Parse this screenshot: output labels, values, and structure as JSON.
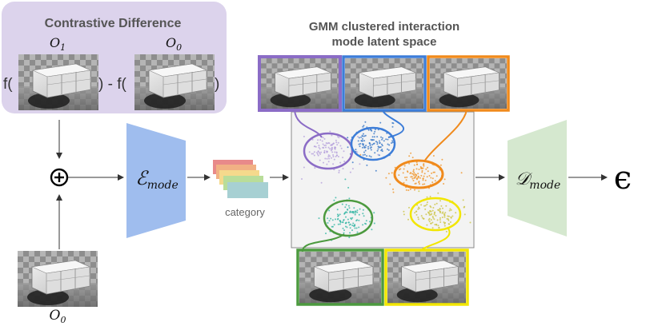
{
  "contrastive": {
    "title": "Contrastive Difference",
    "label_o1": "O",
    "label_o1_sub": "1",
    "label_o0": "O",
    "label_o0_sub": "0",
    "f_open": "f(",
    "f_close_minus": ") - f(",
    "f_close": ")",
    "panel_color": "#dcd3ec"
  },
  "input": {
    "label": "O",
    "label_sub": "0",
    "combine_symbol": "+"
  },
  "encoder": {
    "symbol": "ℰ",
    "subscript": "mode",
    "color": "#9fbdee"
  },
  "category": {
    "label": "category",
    "card_colors": [
      "#e88a8a",
      "#f1b184",
      "#f5d98c",
      "#b9dd9a",
      "#a7d0d3"
    ]
  },
  "latent": {
    "title_line1": "GMM clustered interaction",
    "title_line2": "mode latent space",
    "clusters": [
      {
        "name": "purple",
        "color": "#8b6cc6",
        "fill": "#b39ddb"
      },
      {
        "name": "blue",
        "color": "#3d7dd8",
        "fill": "#2b6fc4"
      },
      {
        "name": "orange",
        "color": "#f08a1c",
        "fill": "#f0901f"
      },
      {
        "name": "teal-green",
        "color": "#4c9a3f",
        "fill": "#2bb3a0"
      },
      {
        "name": "yellow",
        "color": "#f2e600",
        "fill": "#c9c23a"
      }
    ]
  },
  "decoder": {
    "symbol": "𝒟",
    "subscript": "mode",
    "color": "#d5e8cf"
  },
  "output": {
    "symbol": "ϵ"
  }
}
